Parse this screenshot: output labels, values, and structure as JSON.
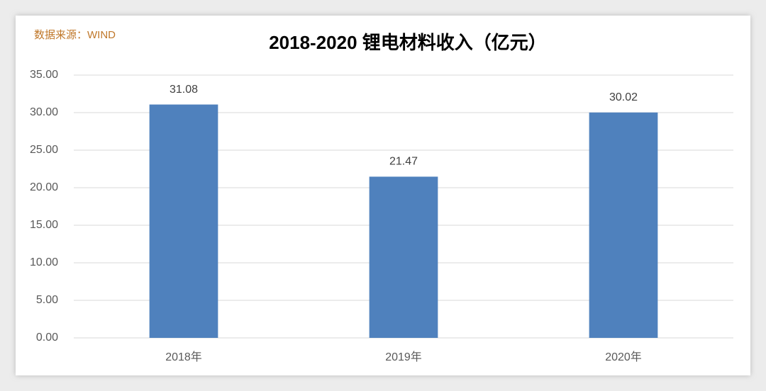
{
  "chart_data": {
    "type": "bar",
    "title": "2018-2020 锂电材料收入（亿元）",
    "source": "数据来源：WIND",
    "categories": [
      "2018年",
      "2019年",
      "2020年"
    ],
    "values": [
      31.08,
      21.47,
      30.02
    ],
    "color": "#4f81bd",
    "ylim": [
      0,
      35
    ],
    "yticks": [
      {
        "value": 0,
        "label": "0.00"
      },
      {
        "value": 5,
        "label": "5.00"
      },
      {
        "value": 10,
        "label": "10.00"
      },
      {
        "value": 15,
        "label": "15.00"
      },
      {
        "value": 20,
        "label": "20.00"
      },
      {
        "value": 25,
        "label": "25.00"
      },
      {
        "value": 30,
        "label": "30.00"
      },
      {
        "value": 35,
        "label": "35.00"
      }
    ],
    "grid": true
  }
}
